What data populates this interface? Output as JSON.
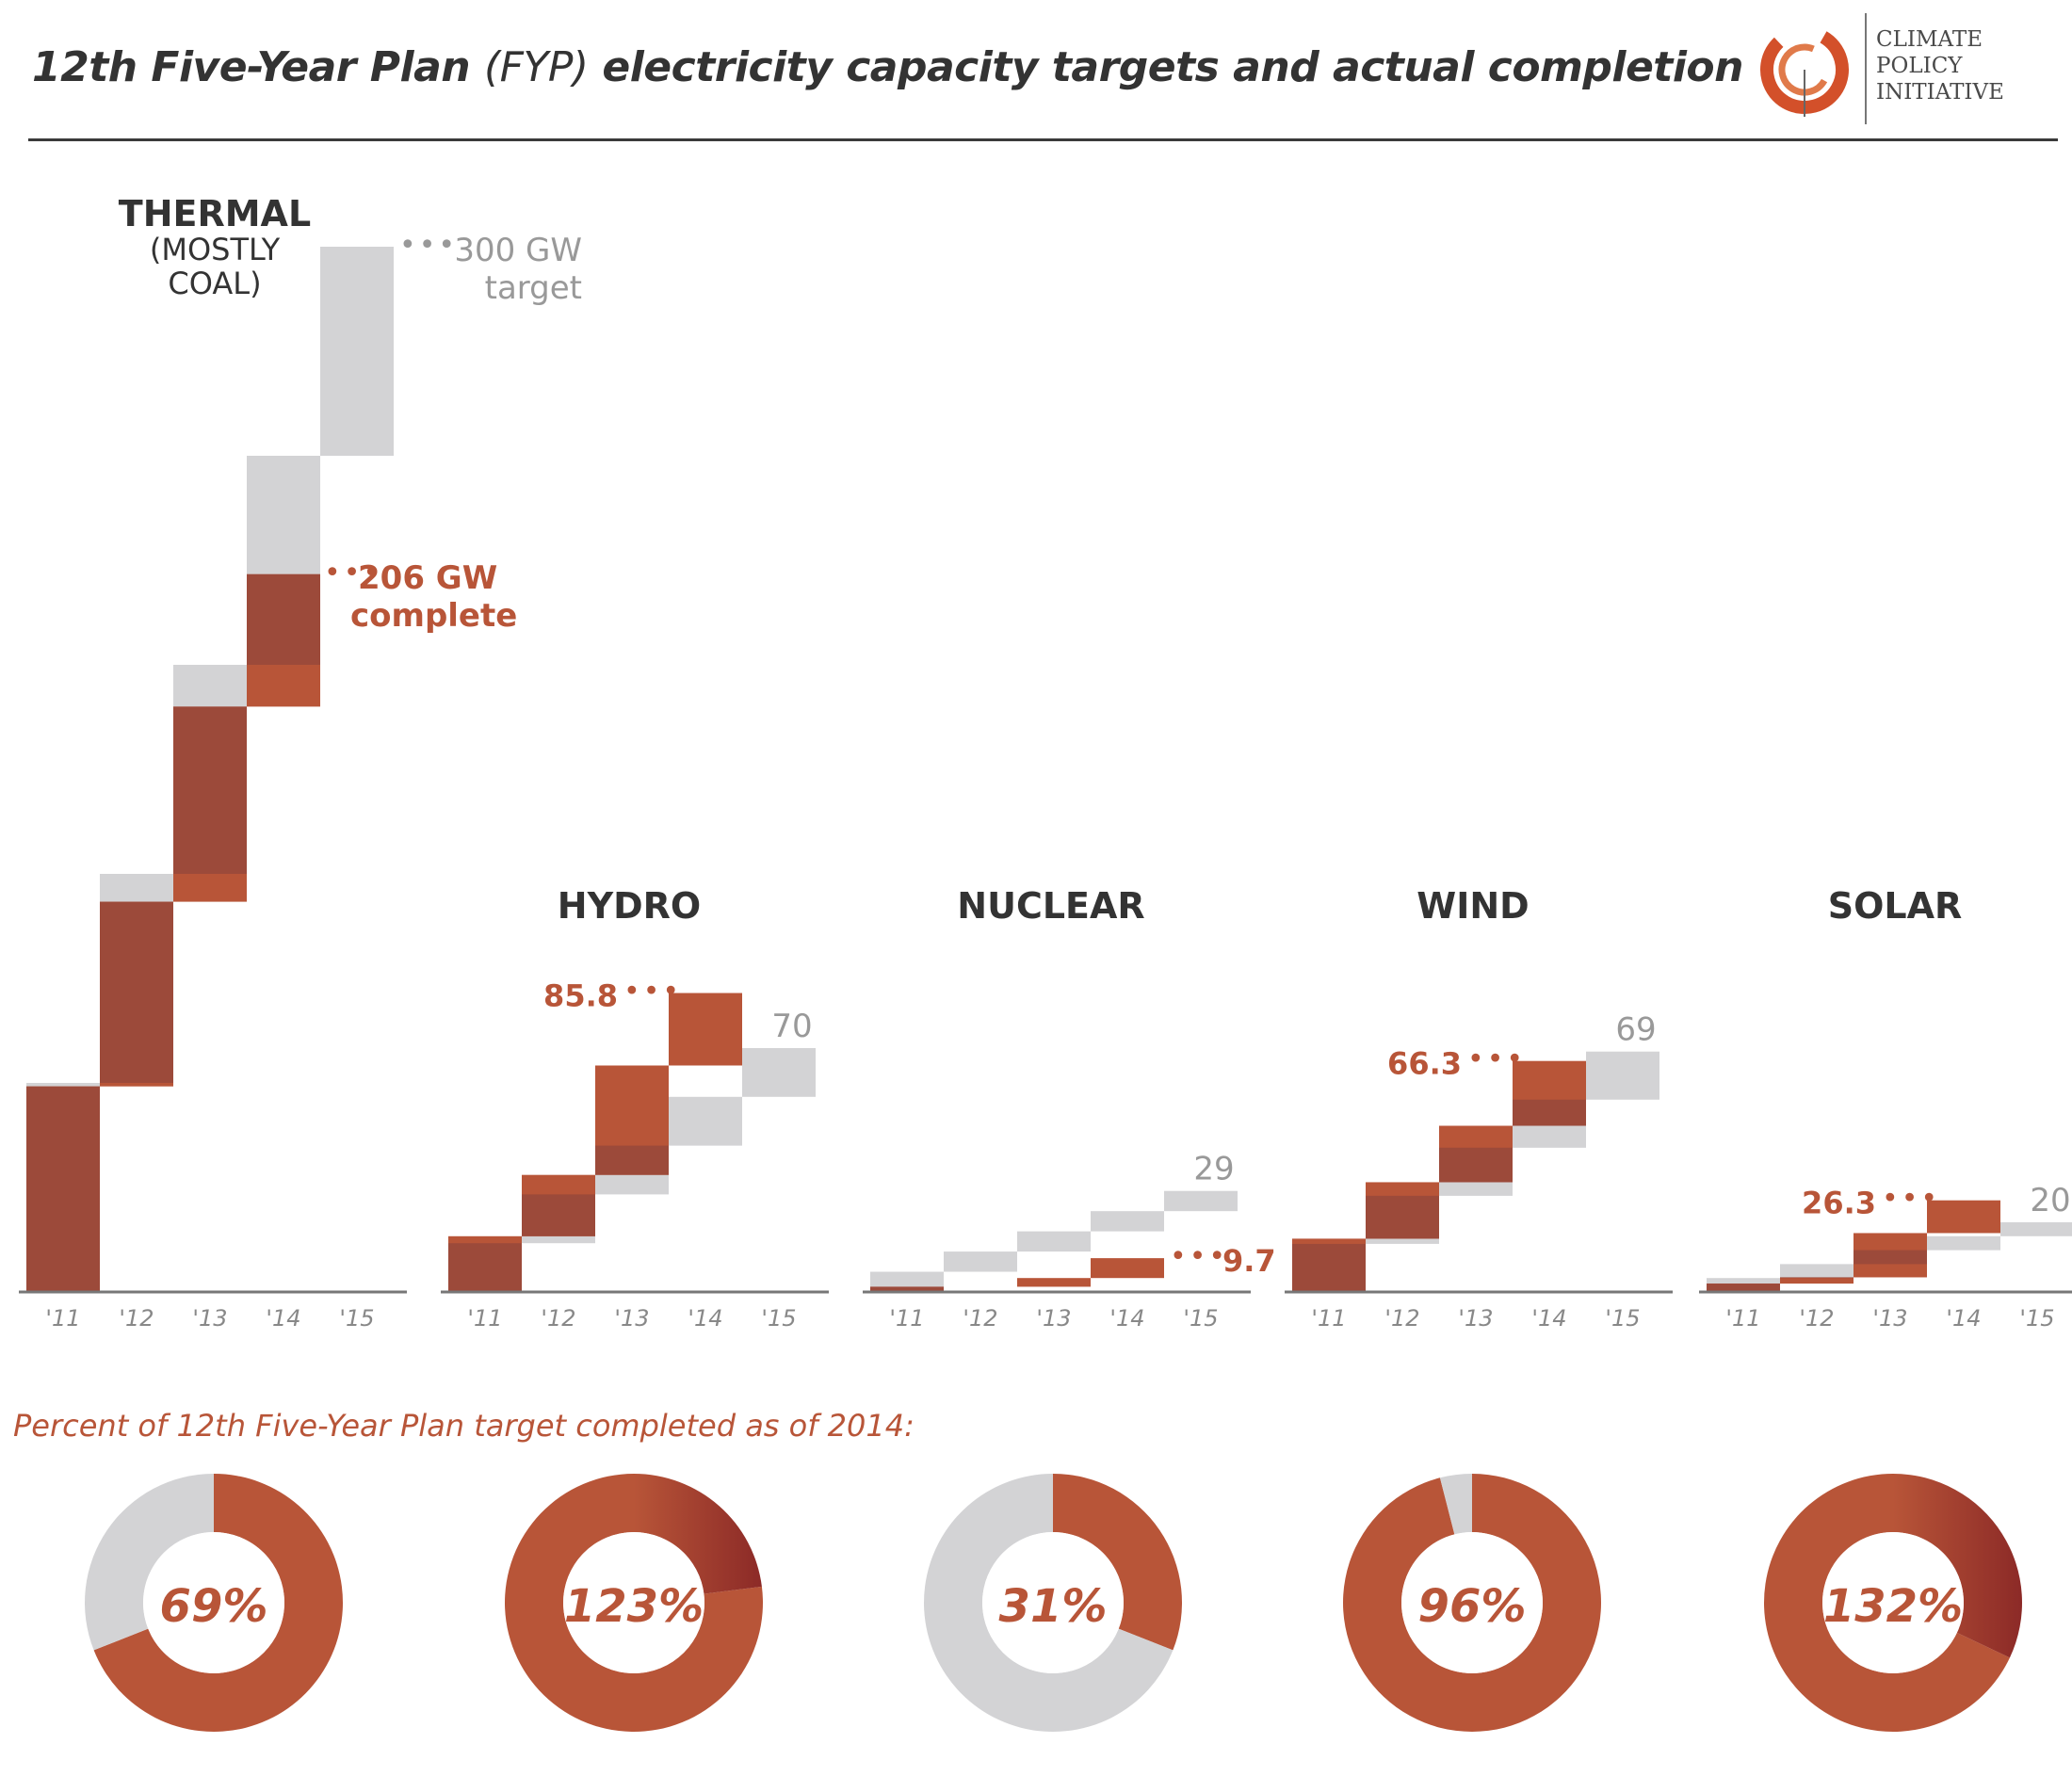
{
  "page": {
    "title_main": "12th Five-Year Plan",
    "title_paren": "(FYP)",
    "title_rest": "electricity capacity targets and actual completion",
    "logo_lines": [
      "CLIMATE",
      "POLICY",
      "INITIATIVE"
    ],
    "percent_heading": "Percent of 12th Five-Year Plan target completed as of 2014:"
  },
  "colors": {
    "actual": "#b85538",
    "actual_dark": "#9c4a3a",
    "target": "#d3d3d5",
    "donut_dark": "#8c2a27",
    "axis": "#777777",
    "label_dark": "#333333",
    "label_gray": "#999999",
    "logo_ring": "#d3502a"
  },
  "chart_data": [
    {
      "type": "stacked-step-bar",
      "title": "THERMAL",
      "subtitle": [
        "(MOSTLY",
        "COAL)"
      ],
      "categories": [
        "'11",
        "'12",
        "'13",
        "'14",
        "'15"
      ],
      "units": "GW",
      "target": {
        "increments": [
          60,
          60,
          60,
          60,
          60
        ],
        "cumulative": [
          60,
          120,
          180,
          240,
          300
        ]
      },
      "actual": {
        "increments": [
          59,
          53,
          56,
          38
        ],
        "cumulative": [
          59,
          112,
          168,
          206
        ]
      },
      "target_label": [
        "300 GW",
        "target"
      ],
      "actual_label": [
        "206 GW",
        "complete"
      ]
    },
    {
      "type": "stacked-step-bar",
      "title": "HYDRO",
      "categories": [
        "'11",
        "'12",
        "'13",
        "'14",
        "'15"
      ],
      "units": "GW",
      "target": {
        "increments": [
          14,
          14,
          14,
          14,
          14
        ],
        "cumulative": [
          14,
          28,
          42,
          56,
          70
        ]
      },
      "actual": {
        "increments": [
          16.0,
          17.6,
          31.4,
          20.8
        ],
        "cumulative": [
          16.0,
          33.6,
          65.0,
          85.8
        ]
      },
      "target_label": [
        "70"
      ],
      "actual_label": [
        "85.8"
      ]
    },
    {
      "type": "stacked-step-bar",
      "title": "NUCLEAR",
      "categories": [
        "'11",
        "'12",
        "'13",
        "'14",
        "'15"
      ],
      "units": "GW",
      "target": {
        "increments": [
          5.8,
          5.8,
          5.8,
          5.8,
          5.8
        ],
        "cumulative": [
          5.8,
          11.6,
          17.4,
          23.2,
          29
        ]
      },
      "actual": {
        "increments": [
          1.5,
          0,
          2.5,
          5.7
        ],
        "cumulative": [
          1.5,
          1.5,
          4.0,
          9.7
        ]
      },
      "target_label": [
        "29"
      ],
      "actual_label": [
        "9.7"
      ]
    },
    {
      "type": "stacked-step-bar",
      "title": "WIND",
      "categories": [
        "'11",
        "'12",
        "'13",
        "'14",
        "'15"
      ],
      "units": "GW",
      "target": {
        "increments": [
          13.8,
          13.8,
          13.8,
          13.8,
          13.8
        ],
        "cumulative": [
          13.8,
          27.6,
          41.4,
          55.2,
          69
        ]
      },
      "actual": {
        "increments": [
          15.3,
          16.2,
          16.2,
          18.6
        ],
        "cumulative": [
          15.3,
          31.5,
          47.7,
          66.3
        ]
      },
      "target_label": [
        "69"
      ],
      "actual_label": [
        "66.3"
      ]
    },
    {
      "type": "stacked-step-bar",
      "title": "SOLAR",
      "categories": [
        "'11",
        "'12",
        "'13",
        "'14",
        "'15"
      ],
      "units": "GW",
      "target": {
        "increments": [
          4,
          4,
          4,
          4,
          4
        ],
        "cumulative": [
          4,
          8,
          12,
          16,
          20
        ]
      },
      "actual": {
        "increments": [
          2.4,
          1.8,
          12.7,
          9.4
        ],
        "cumulative": [
          2.4,
          4.2,
          16.9,
          26.3
        ]
      },
      "target_label": [
        "20"
      ],
      "actual_label": [
        "26.3"
      ]
    }
  ],
  "donuts": [
    {
      "label": "69%",
      "value": 69
    },
    {
      "label": "123%",
      "value": 123
    },
    {
      "label": "31%",
      "value": 31
    },
    {
      "label": "96%",
      "value": 96
    },
    {
      "label": "132%",
      "value": 132
    }
  ]
}
